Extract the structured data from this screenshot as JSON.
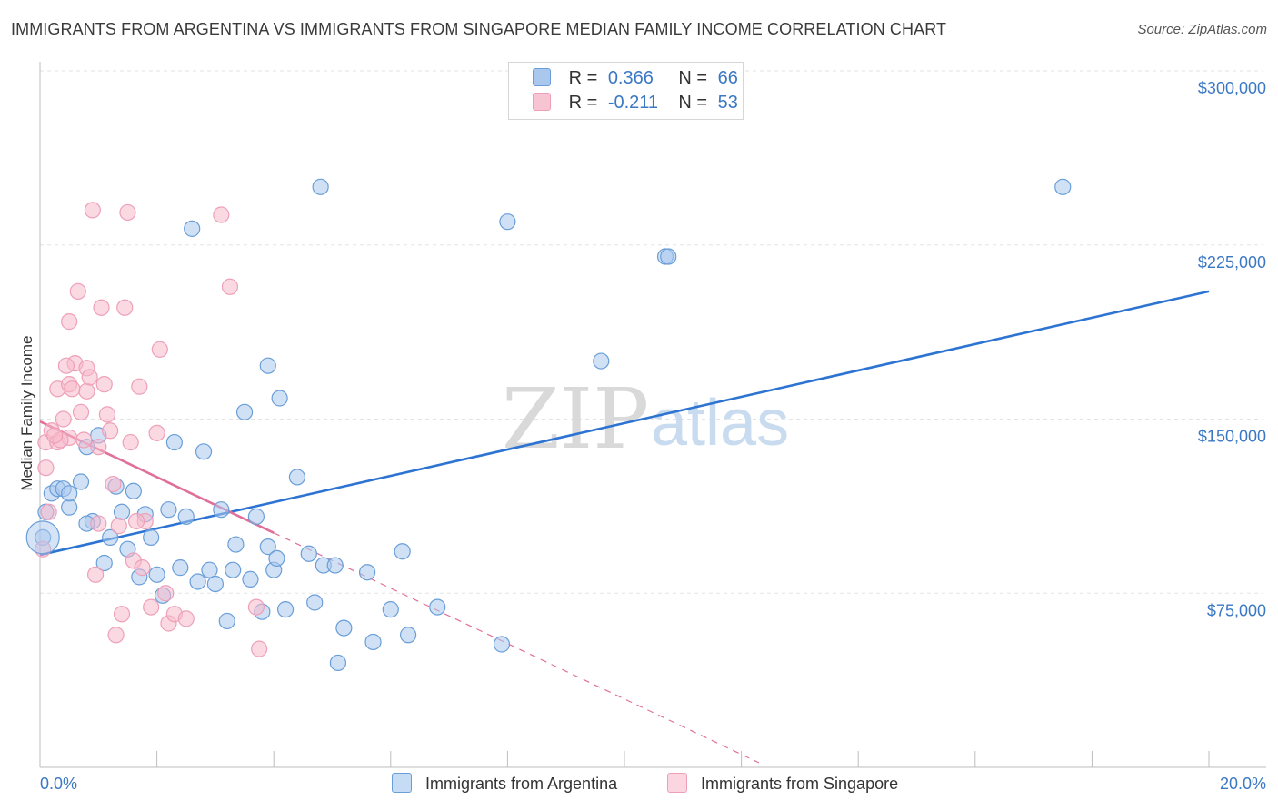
{
  "title": "IMMIGRANTS FROM ARGENTINA VS IMMIGRANTS FROM SINGAPORE MEDIAN FAMILY INCOME CORRELATION CHART",
  "source": "Source: ZipAtlas.com",
  "watermark": {
    "zip": "ZIP",
    "atlas": "atlas"
  },
  "colors": {
    "blue": "#3b78c4",
    "blue_fill": "#aac8ee",
    "blue_line": "#2d74d2",
    "pink_fill": "#f7b9cb",
    "pink_line": "#e0709a",
    "grid": "#e3e3e3"
  },
  "legend": {
    "r_label": "R =",
    "n_label": "N =",
    "rows": [
      {
        "r": "0.366",
        "n": "66"
      },
      {
        "r": "-0.211",
        "n": "53"
      }
    ]
  },
  "bottom_legend": [
    "Immigrants from Argentina",
    "Immigrants from Singapore"
  ],
  "chart_data": {
    "type": "scatter",
    "xlabel": "",
    "ylabel": "Median Family Income",
    "xlim": [
      0,
      20
    ],
    "ylim": [
      0,
      300000
    ],
    "x_tick_labels": [
      "0.0%",
      "20.0%"
    ],
    "y_ticks": [
      75000,
      150000,
      225000,
      300000
    ],
    "y_tick_labels": [
      "$75,000",
      "$150,000",
      "$225,000",
      "$300,000"
    ],
    "series": [
      {
        "name": "Immigrants from Argentina",
        "points": [
          [
            0.05,
            99000
          ],
          [
            0.1,
            110000
          ],
          [
            0.2,
            118000
          ],
          [
            0.3,
            120000
          ],
          [
            0.4,
            120000
          ],
          [
            0.5,
            112000
          ],
          [
            0.5,
            118000
          ],
          [
            0.7,
            123000
          ],
          [
            0.8,
            138000
          ],
          [
            0.9,
            106000
          ],
          [
            1.0,
            143000
          ],
          [
            1.1,
            88000
          ],
          [
            1.2,
            99000
          ],
          [
            1.3,
            121000
          ],
          [
            1.4,
            110000
          ],
          [
            1.5,
            94000
          ],
          [
            1.6,
            119000
          ],
          [
            1.7,
            82000
          ],
          [
            1.8,
            109000
          ],
          [
            1.9,
            99000
          ],
          [
            2.0,
            83000
          ],
          [
            2.1,
            74000
          ],
          [
            2.2,
            111000
          ],
          [
            2.3,
            140000
          ],
          [
            2.4,
            86000
          ],
          [
            2.5,
            108000
          ],
          [
            2.6,
            232000
          ],
          [
            2.7,
            80000
          ],
          [
            2.8,
            136000
          ],
          [
            2.9,
            85000
          ],
          [
            3.0,
            79000
          ],
          [
            3.1,
            111000
          ],
          [
            3.2,
            63000
          ],
          [
            3.3,
            85000
          ],
          [
            3.35,
            96000
          ],
          [
            3.5,
            153000
          ],
          [
            3.6,
            81000
          ],
          [
            3.7,
            108000
          ],
          [
            3.8,
            67000
          ],
          [
            3.9,
            95000
          ],
          [
            3.9,
            173000
          ],
          [
            4.0,
            85000
          ],
          [
            4.05,
            90000
          ],
          [
            4.1,
            159000
          ],
          [
            4.2,
            68000
          ],
          [
            4.4,
            125000
          ],
          [
            4.6,
            92000
          ],
          [
            4.7,
            71000
          ],
          [
            4.8,
            250000
          ],
          [
            4.85,
            87000
          ],
          [
            5.05,
            87000
          ],
          [
            5.1,
            45000
          ],
          [
            5.2,
            60000
          ],
          [
            5.6,
            84000
          ],
          [
            5.7,
            54000
          ],
          [
            6.0,
            68000
          ],
          [
            6.2,
            93000
          ],
          [
            6.3,
            57000
          ],
          [
            6.8,
            69000
          ],
          [
            7.9,
            53000
          ],
          [
            8.0,
            235000
          ],
          [
            9.6,
            175000
          ],
          [
            10.7,
            220000
          ],
          [
            10.75,
            220000
          ],
          [
            17.5,
            250000
          ],
          [
            0.8,
            105000
          ]
        ]
      },
      {
        "name": "Immigrants from Singapore",
        "points": [
          [
            0.05,
            94000
          ],
          [
            0.1,
            129000
          ],
          [
            0.1,
            140000
          ],
          [
            0.15,
            110000
          ],
          [
            0.2,
            145000
          ],
          [
            0.3,
            140000
          ],
          [
            0.3,
            163000
          ],
          [
            0.4,
            150000
          ],
          [
            0.5,
            142000
          ],
          [
            0.5,
            165000
          ],
          [
            0.5,
            192000
          ],
          [
            0.6,
            174000
          ],
          [
            0.65,
            205000
          ],
          [
            0.7,
            153000
          ],
          [
            0.8,
            172000
          ],
          [
            0.8,
            162000
          ],
          [
            0.85,
            168000
          ],
          [
            0.9,
            240000
          ],
          [
            0.95,
            83000
          ],
          [
            1.0,
            105000
          ],
          [
            1.05,
            198000
          ],
          [
            1.1,
            165000
          ],
          [
            1.15,
            152000
          ],
          [
            1.2,
            145000
          ],
          [
            1.25,
            122000
          ],
          [
            1.3,
            57000
          ],
          [
            1.35,
            104000
          ],
          [
            1.4,
            66000
          ],
          [
            1.5,
            239000
          ],
          [
            1.55,
            140000
          ],
          [
            1.6,
            89000
          ],
          [
            1.7,
            164000
          ],
          [
            1.75,
            86000
          ],
          [
            1.8,
            106000
          ],
          [
            1.9,
            69000
          ],
          [
            2.0,
            144000
          ],
          [
            2.05,
            180000
          ],
          [
            2.15,
            75000
          ],
          [
            2.2,
            62000
          ],
          [
            2.3,
            66000
          ],
          [
            2.5,
            64000
          ],
          [
            3.1,
            238000
          ],
          [
            3.25,
            207000
          ],
          [
            3.7,
            69000
          ],
          [
            3.75,
            51000
          ],
          [
            0.35,
            141000
          ],
          [
            0.45,
            173000
          ],
          [
            0.55,
            163000
          ],
          [
            0.75,
            141000
          ],
          [
            1.45,
            198000
          ],
          [
            1.65,
            106000
          ],
          [
            0.25,
            143000
          ],
          [
            1.0,
            138000
          ]
        ]
      }
    ],
    "trend_lines": [
      {
        "series": "Immigrants from Argentina",
        "x": [
          0,
          20
        ],
        "y": [
          91500,
          205000
        ],
        "style": "solid"
      },
      {
        "series": "Immigrants from Singapore",
        "x": [
          0,
          4
        ],
        "y": [
          149000,
          101000
        ],
        "style": "solid"
      },
      {
        "series": "Immigrants from Singapore",
        "x": [
          4,
          12.3
        ],
        "y": [
          101000,
          2000
        ],
        "style": "dashed"
      }
    ]
  }
}
